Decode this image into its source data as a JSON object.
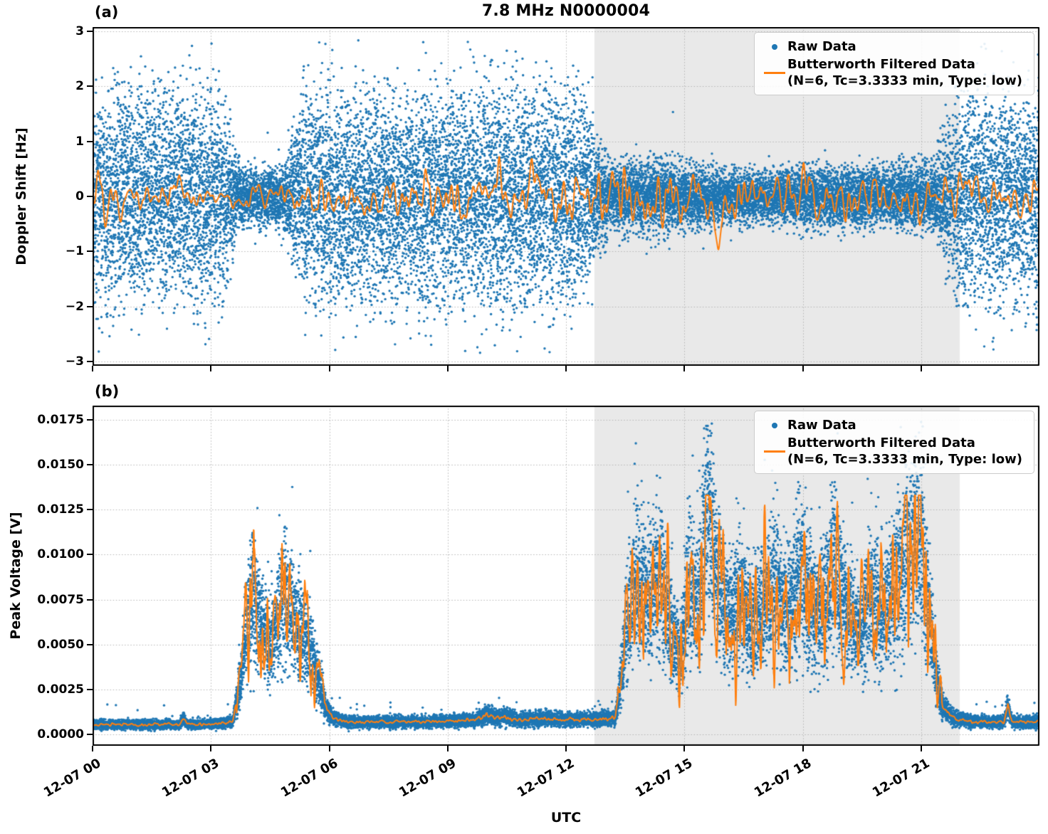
{
  "title": "7.8 MHz N0000004",
  "legend": {
    "raw_label": "Raw Data",
    "filtered_label": "Butterworth Filtered Data",
    "filtered_sublabel": "(N=6, Tc=3.3333 min, Type: low)"
  },
  "colors": {
    "raw": "#1f77b4",
    "filtered": "#ff7f0e",
    "shade": "#e9e9e9",
    "grid": "#b5b5b5",
    "spine": "#000000",
    "legend_border": "#cccccc"
  },
  "chart_data": [
    {
      "id": "a",
      "type": "scatter",
      "panel_label": "(a)",
      "ylabel": "Doppler Shift [Hz]",
      "xlabel": "",
      "x_hours_range": [
        0,
        24
      ],
      "ylim": [
        -3.08,
        3.08
      ],
      "yticks": [
        3,
        2,
        1,
        0,
        -1,
        -2,
        -3
      ],
      "ytick_labels": [
        "3",
        "2",
        "1",
        "0",
        "−1",
        "−2",
        "−3"
      ],
      "xtick_hours": [
        0,
        3,
        6,
        9,
        12,
        15,
        18,
        21
      ],
      "xtick_labels": [],
      "shade_hours": [
        12.72,
        21.98
      ],
      "grid": true,
      "legend_position": "upper right",
      "series": [
        {
          "name": "Raw Data",
          "kind": "scatter",
          "color": "#1f77b4"
        },
        {
          "name": "Butterworth Filtered Data (N=6, Tc=3.3333 min, Type: low)",
          "kind": "line",
          "color": "#ff7f0e"
        }
      ],
      "raw_halfwidth_keyframes": [
        [
          0,
          1.55
        ],
        [
          3.3,
          1.5
        ],
        [
          3.55,
          0.75
        ],
        [
          3.8,
          0.4
        ],
        [
          4.8,
          0.38
        ],
        [
          5.1,
          0.95
        ],
        [
          5.35,
          1.45
        ],
        [
          9.0,
          1.55
        ],
        [
          9.6,
          1.6
        ],
        [
          12.4,
          1.55
        ],
        [
          12.75,
          0.9
        ],
        [
          13.1,
          0.45
        ],
        [
          13.6,
          0.5
        ],
        [
          14.3,
          0.55
        ],
        [
          15.0,
          0.45
        ],
        [
          16.0,
          0.4
        ],
        [
          17.0,
          0.35
        ],
        [
          18.0,
          0.42
        ],
        [
          19.0,
          0.45
        ],
        [
          20.0,
          0.4
        ],
        [
          20.8,
          0.5
        ],
        [
          21.3,
          0.5
        ],
        [
          21.6,
          0.95
        ],
        [
          21.9,
          1.35
        ],
        [
          22.2,
          1.5
        ],
        [
          24,
          1.5
        ]
      ],
      "filtered_amp_keyframes": [
        [
          0,
          0.2
        ],
        [
          3.5,
          0.14
        ],
        [
          4.0,
          0.09
        ],
        [
          4.8,
          0.09
        ],
        [
          5.2,
          0.18
        ],
        [
          9.0,
          0.2
        ],
        [
          9.5,
          0.3
        ],
        [
          10.0,
          0.2
        ],
        [
          12.5,
          0.26
        ],
        [
          13.0,
          0.3
        ],
        [
          14.0,
          0.28
        ],
        [
          15.0,
          0.25
        ],
        [
          17.0,
          0.2
        ],
        [
          19.0,
          0.22
        ],
        [
          21.0,
          0.25
        ],
        [
          22.0,
          0.2
        ],
        [
          24,
          0.2
        ]
      ],
      "features": {
        "dip": {
          "t": 9.5,
          "depth": -0.55,
          "width": 0.13
        }
      },
      "points_per_hour": 900,
      "outlier_fraction": 0.015,
      "outlier_scale": 1.8
    },
    {
      "id": "b",
      "type": "scatter",
      "panel_label": "(b)",
      "ylabel": "Peak Voltage [V]",
      "xlabel": "UTC",
      "x_hours_range": [
        0,
        24
      ],
      "ylim": [
        -0.00063,
        0.01829
      ],
      "yticks": [
        0.0175,
        0.015,
        0.0125,
        0.01,
        0.0075,
        0.005,
        0.0025,
        0
      ],
      "ytick_labels": [
        "0.0175",
        "0.0150",
        "0.0125",
        "0.0100",
        "0.0075",
        "0.0050",
        "0.0025",
        "0.0000"
      ],
      "xtick_hours": [
        0,
        3,
        6,
        9,
        12,
        15,
        18,
        21
      ],
      "xtick_labels": [
        "12-07 00",
        "12-07 03",
        "12-07 06",
        "12-07 09",
        "12-07 12",
        "12-07 15",
        "12-07 18",
        "12-07 21"
      ],
      "shade_hours": [
        12.72,
        21.98
      ],
      "grid": true,
      "legend_position": "upper right",
      "series": [
        {
          "name": "Raw Data",
          "kind": "scatter",
          "color": "#1f77b4"
        },
        {
          "name": "Butterworth Filtered Data (N=6, Tc=3.3333 min, Type: low)",
          "kind": "line",
          "color": "#ff7f0e"
        }
      ],
      "filtered_keyframes": [
        [
          0,
          0.00055
        ],
        [
          2.2,
          0.00055
        ],
        [
          2.3,
          0.0009
        ],
        [
          2.4,
          0.00055
        ],
        [
          3.2,
          0.0006
        ],
        [
          3.55,
          0.0007
        ],
        [
          3.75,
          0.003
        ],
        [
          3.9,
          0.006
        ],
        [
          4.05,
          0.0078
        ],
        [
          4.15,
          0.0068
        ],
        [
          4.3,
          0.0058
        ],
        [
          4.45,
          0.005
        ],
        [
          4.6,
          0.0055
        ],
        [
          4.75,
          0.007
        ],
        [
          4.9,
          0.0078
        ],
        [
          5.05,
          0.0068
        ],
        [
          5.25,
          0.0058
        ],
        [
          5.5,
          0.0048
        ],
        [
          5.7,
          0.0032
        ],
        [
          5.9,
          0.0016
        ],
        [
          6.1,
          0.0009
        ],
        [
          6.4,
          0.0007
        ],
        [
          8.5,
          0.0007
        ],
        [
          9.7,
          0.0008
        ],
        [
          10.0,
          0.0011
        ],
        [
          10.3,
          0.0009
        ],
        [
          10.45,
          0.001
        ],
        [
          10.8,
          0.0008
        ],
        [
          11.4,
          0.0009
        ],
        [
          12.0,
          0.0008
        ],
        [
          13.25,
          0.0009
        ],
        [
          13.4,
          0.003
        ],
        [
          13.55,
          0.0065
        ],
        [
          13.8,
          0.0085
        ],
        [
          14.1,
          0.0075
        ],
        [
          14.4,
          0.009
        ],
        [
          14.7,
          0.0055
        ],
        [
          14.9,
          0.004
        ],
        [
          15.1,
          0.0085
        ],
        [
          15.35,
          0.007
        ],
        [
          15.6,
          0.0125
        ],
        [
          15.8,
          0.009
        ],
        [
          16.1,
          0.0065
        ],
        [
          16.4,
          0.0075
        ],
        [
          16.7,
          0.006
        ],
        [
          17.0,
          0.007
        ],
        [
          17.3,
          0.0085
        ],
        [
          17.6,
          0.0065
        ],
        [
          17.9,
          0.009
        ],
        [
          18.2,
          0.0075
        ],
        [
          18.5,
          0.0065
        ],
        [
          18.8,
          0.0095
        ],
        [
          19.1,
          0.007
        ],
        [
          19.4,
          0.0055
        ],
        [
          19.7,
          0.0075
        ],
        [
          20.0,
          0.0065
        ],
        [
          20.3,
          0.008
        ],
        [
          20.6,
          0.0095
        ],
        [
          20.9,
          0.0115
        ],
        [
          21.1,
          0.0085
        ],
        [
          21.25,
          0.006
        ],
        [
          21.4,
          0.003
        ],
        [
          21.55,
          0.0015
        ],
        [
          21.8,
          0.001
        ],
        [
          22.0,
          0.0008
        ],
        [
          22.5,
          0.0007
        ],
        [
          23.1,
          0.0007
        ],
        [
          23.2,
          0.0016
        ],
        [
          23.3,
          0.0007
        ],
        [
          24,
          0.0007
        ]
      ],
      "points_per_hour": 800,
      "spike_fraction": 0.03
    }
  ]
}
